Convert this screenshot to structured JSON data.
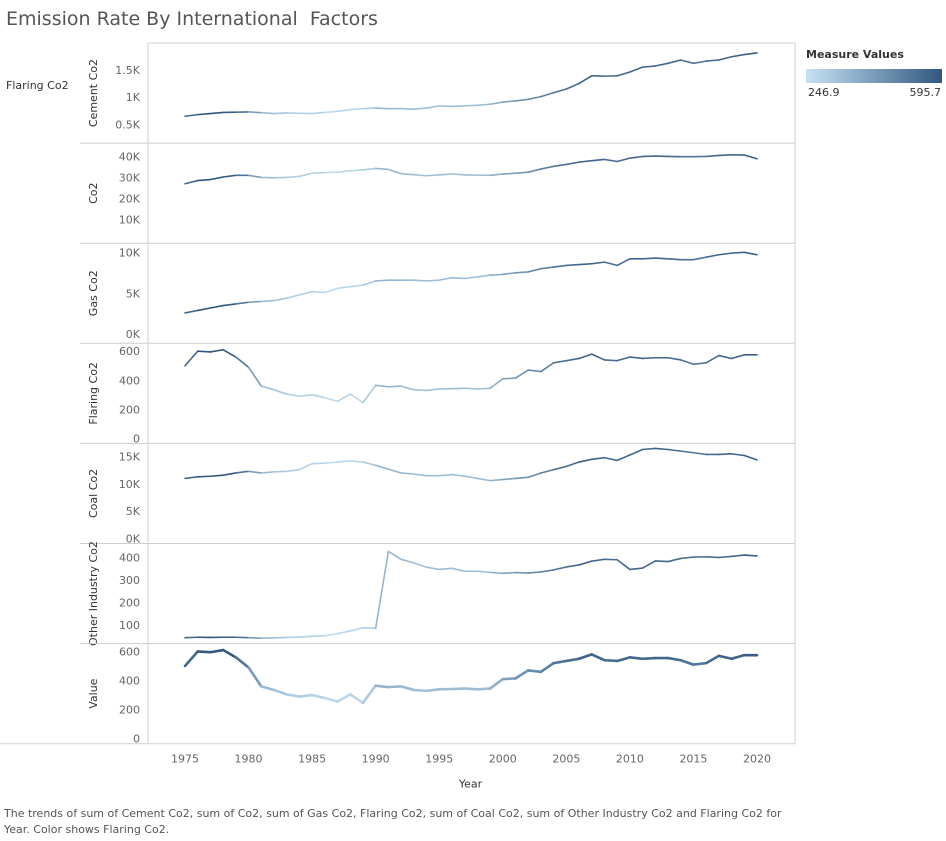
{
  "chart_data": {
    "type": "line",
    "title": "Emission Rate By International  Factors",
    "xlabel": "Year",
    "color_label": "Flaring Co2",
    "legend": {
      "title": "Measure Values",
      "min": "246.9",
      "max": "595.7",
      "min_value": 246.9,
      "max_value": 595.7,
      "color_low": "#c6e2f5",
      "color_high": "#30577f",
      "placement": "top-right"
    },
    "caption": "The trends of sum of Cement Co2, sum of Co2, sum of Gas Co2, Flaring Co2, sum of Coal Co2, sum of Other Industry Co2 and Flaring Co2 for Year.  Color shows Flaring Co2.",
    "x": [
      1975,
      1976,
      1977,
      1978,
      1979,
      1980,
      1981,
      1982,
      1983,
      1984,
      1985,
      1986,
      1987,
      1988,
      1989,
      1990,
      1991,
      1992,
      1993,
      1994,
      1995,
      1996,
      1997,
      1998,
      1999,
      2000,
      2001,
      2002,
      2003,
      2004,
      2005,
      2006,
      2007,
      2008,
      2009,
      2010,
      2011,
      2012,
      2013,
      2014,
      2015,
      2016,
      2017,
      2018,
      2019,
      2020
    ],
    "x_ticks": [
      1975,
      1980,
      1985,
      1990,
      1995,
      2000,
      2005,
      2010,
      2015,
      2020
    ],
    "x_tick_labels": [
      "1975",
      "1980",
      "1985",
      "1990",
      "1995",
      "2000",
      "2005",
      "2010",
      "2015",
      "2020"
    ],
    "x_range": [
      1975,
      2020
    ],
    "flaring": [
      500,
      600,
      595,
      610,
      560,
      490,
      360,
      335,
      305,
      290,
      300,
      280,
      255,
      305,
      246.9,
      365,
      355,
      360,
      335,
      330,
      340,
      342,
      345,
      340,
      345,
      410,
      415,
      470,
      460,
      520,
      535,
      550,
      580,
      540,
      535,
      560,
      550,
      555,
      555,
      540,
      510,
      520,
      570,
      550,
      575,
      575
    ],
    "panels": [
      {
        "name": "Cement Co2",
        "row_label": "Flaring Co2",
        "ylim": [
          250,
          1900
        ],
        "ticks": [
          500,
          1000,
          1500
        ],
        "tick_labels": [
          "0.5K",
          "1K",
          "1.5K"
        ],
        "values": [
          650,
          680,
          700,
          720,
          725,
          730,
          715,
          700,
          710,
          705,
          700,
          720,
          740,
          770,
          790,
          800,
          790,
          790,
          780,
          800,
          840,
          830,
          840,
          850,
          870,
          910,
          930,
          960,
          1010,
          1080,
          1150,
          1250,
          1390,
          1385,
          1390,
          1460,
          1550,
          1570,
          1620,
          1680,
          1620,
          1660,
          1680,
          1740,
          1780,
          1810
        ]
      },
      {
        "name": "Co2",
        "ylim": [
          1000,
          44000
        ],
        "ticks": [
          10000,
          20000,
          30000,
          40000
        ],
        "tick_labels": [
          "10K",
          "20K",
          "30K",
          "40K"
        ],
        "values": [
          27000,
          28500,
          29000,
          30200,
          31000,
          31000,
          30000,
          29800,
          30000,
          30500,
          32000,
          32300,
          32500,
          33200,
          33600,
          34300,
          33800,
          31800,
          31300,
          30800,
          31200,
          31700,
          31200,
          31100,
          31000,
          31600,
          32000,
          32500,
          34000,
          35300,
          36200,
          37300,
          38000,
          38600,
          37600,
          39200,
          40000,
          40200,
          40000,
          39900,
          39900,
          40000,
          40500,
          40800,
          40700,
          38900
        ]
      },
      {
        "name": "Gas Co2",
        "ylim": [
          -500,
          10500
        ],
        "ticks": [
          0,
          5000,
          10000
        ],
        "tick_labels": [
          "0K",
          "5K",
          "10K"
        ],
        "values": [
          2600,
          2900,
          3200,
          3500,
          3700,
          3900,
          4000,
          4100,
          4400,
          4800,
          5200,
          5100,
          5600,
          5800,
          6000,
          6500,
          6600,
          6600,
          6600,
          6500,
          6600,
          6900,
          6800,
          7000,
          7200,
          7300,
          7500,
          7600,
          8000,
          8200,
          8400,
          8500,
          8600,
          8800,
          8400,
          9200,
          9200,
          9300,
          9200,
          9100,
          9100,
          9400,
          9700,
          9900,
          10000,
          9700
        ]
      },
      {
        "name": "Flaring Co2",
        "ylim": [
          0,
          620
        ],
        "ticks": [
          0,
          200,
          400,
          600
        ],
        "tick_labels": [
          "0",
          "200",
          "400",
          "600"
        ],
        "use": "flaring"
      },
      {
        "name": "Coal Co2",
        "ylim": [
          0,
          16500
        ],
        "ticks": [
          0,
          5000,
          10000,
          15000
        ],
        "tick_labels": [
          "0K",
          "5K",
          "10K",
          "15K"
        ],
        "values": [
          11000,
          11300,
          11400,
          11600,
          12000,
          12300,
          12000,
          12200,
          12300,
          12600,
          13700,
          13800,
          14000,
          14200,
          14000,
          13400,
          12700,
          12000,
          11800,
          11500,
          11500,
          11700,
          11400,
          11000,
          10600,
          10800,
          11000,
          11200,
          12000,
          12600,
          13200,
          14000,
          14500,
          14800,
          14300,
          15300,
          16300,
          16500,
          16300,
          16000,
          15700,
          15400,
          15400,
          15500,
          15200,
          14400
        ]
      },
      {
        "name": "Other Industry Co2",
        "ylim": [
          40,
          440
        ],
        "ticks": [
          100,
          200,
          300,
          400
        ],
        "tick_labels": [
          "100",
          "200",
          "300",
          "400"
        ],
        "values": [
          44,
          46,
          45,
          46,
          46,
          44,
          42,
          43,
          45,
          47,
          50,
          53,
          62,
          74,
          88,
          86,
          427,
          392,
          376,
          357,
          347,
          352,
          339,
          339,
          334,
          330,
          333,
          331,
          336,
          345,
          358,
          367,
          384,
          392,
          390,
          347,
          353,
          385,
          382,
          396,
          402,
          403,
          400,
          405,
          411,
          407
        ]
      },
      {
        "name": "Value",
        "ylim": [
          0,
          620
        ],
        "ticks": [
          0,
          200,
          400,
          600
        ],
        "tick_labels": [
          "0",
          "200",
          "400",
          "600"
        ],
        "use": "flaring",
        "thick": true
      }
    ]
  }
}
